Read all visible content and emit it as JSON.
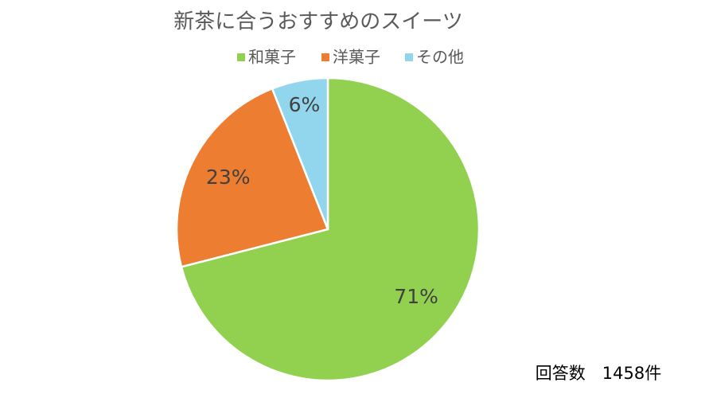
{
  "chart_data": {
    "type": "pie",
    "title": "新茶に合うおすすめのスイーツ",
    "categories": [
      "和菓子",
      "洋菓子",
      "その他"
    ],
    "values": [
      71,
      23,
      6
    ],
    "value_labels": [
      "71%",
      "23%",
      "6%"
    ],
    "colors": [
      "#92d050",
      "#ed7d31",
      "#92d6ee"
    ],
    "legend": "top",
    "annotation": "回答数　1458件"
  }
}
